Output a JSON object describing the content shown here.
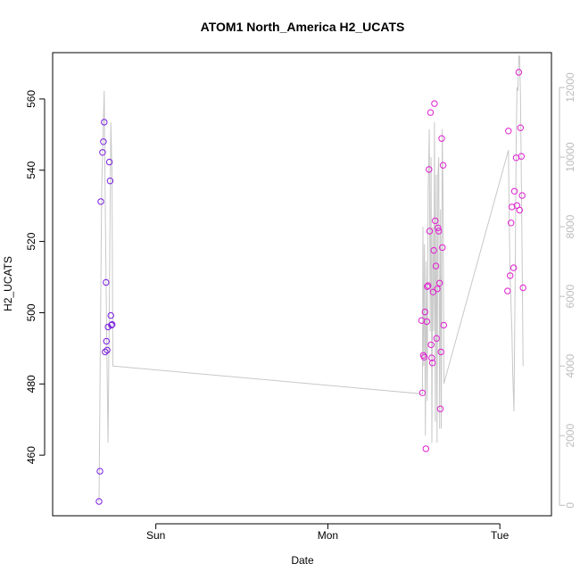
{
  "chart_data": {
    "type": "scatter",
    "title": "ATOM1 North_America H2_UCATS",
    "xlabel": "Date",
    "ylabel": "H2_UCATS",
    "x_ticks": [
      "Sun",
      "Mon",
      "Tue"
    ],
    "x_range_days": [
      -0.6,
      2.3
    ],
    "ylim": [
      443,
      573
    ],
    "y_ticks": [
      460,
      480,
      500,
      520,
      540,
      560
    ],
    "y2lim": [
      -300,
      13000
    ],
    "y2_ticks": [
      0,
      2000,
      4000,
      6000,
      8000,
      10000,
      12000
    ],
    "colors": {
      "points_early": "#7b1fe0",
      "points_late": "#e01fd0",
      "line": "#c8c8c8",
      "axis": "#000000",
      "axis_right": "#bdbdbd"
    },
    "series": [
      {
        "values": [
          {
            "x": -0.33,
            "y": 447
          },
          {
            "x": -0.325,
            "y": 455.5
          },
          {
            "x": -0.32,
            "y": 531.2
          },
          {
            "x": -0.31,
            "y": 545
          },
          {
            "x": -0.305,
            "y": 548
          },
          {
            "x": -0.3,
            "y": 553.5
          },
          {
            "x": -0.295,
            "y": 489
          },
          {
            "x": -0.29,
            "y": 508.5
          },
          {
            "x": -0.287,
            "y": 492
          },
          {
            "x": -0.283,
            "y": 489.5
          },
          {
            "x": -0.278,
            "y": 496
          },
          {
            "x": -0.27,
            "y": 542.3
          },
          {
            "x": -0.266,
            "y": 537
          },
          {
            "x": -0.262,
            "y": 499.2
          },
          {
            "x": -0.258,
            "y": 496.5
          },
          {
            "x": -0.254,
            "y": 496.7
          },
          {
            "x": 1.545,
            "y": 497.8
          },
          {
            "x": 1.55,
            "y": 477.5
          },
          {
            "x": 1.555,
            "y": 488
          },
          {
            "x": 1.56,
            "y": 487.5
          },
          {
            "x": 1.565,
            "y": 500.2
          },
          {
            "x": 1.57,
            "y": 461.8
          },
          {
            "x": 1.575,
            "y": 497.5
          },
          {
            "x": 1.578,
            "y": 507.3
          },
          {
            "x": 1.583,
            "y": 507.6
          },
          {
            "x": 1.588,
            "y": 540.2
          },
          {
            "x": 1.592,
            "y": 522.9
          },
          {
            "x": 1.597,
            "y": 556.2
          },
          {
            "x": 1.6,
            "y": 491
          },
          {
            "x": 1.604,
            "y": 487.3
          },
          {
            "x": 1.608,
            "y": 485.9
          },
          {
            "x": 1.612,
            "y": 505.8
          },
          {
            "x": 1.616,
            "y": 517.5
          },
          {
            "x": 1.62,
            "y": 558.7
          },
          {
            "x": 1.624,
            "y": 525.8
          },
          {
            "x": 1.628,
            "y": 513.1
          },
          {
            "x": 1.632,
            "y": 492.8
          },
          {
            "x": 1.636,
            "y": 506.7
          },
          {
            "x": 1.64,
            "y": 523.8
          },
          {
            "x": 1.645,
            "y": 522.9
          },
          {
            "x": 1.65,
            "y": 508.3
          },
          {
            "x": 1.654,
            "y": 473
          },
          {
            "x": 1.658,
            "y": 489
          },
          {
            "x": 1.662,
            "y": 548.9
          },
          {
            "x": 1.666,
            "y": 518.3
          },
          {
            "x": 1.67,
            "y": 541.4
          },
          {
            "x": 1.674,
            "y": 496.5
          },
          {
            "x": 2.045,
            "y": 506.1
          },
          {
            "x": 2.05,
            "y": 551
          },
          {
            "x": 2.06,
            "y": 510.4
          },
          {
            "x": 2.065,
            "y": 525.2
          },
          {
            "x": 2.07,
            "y": 529.7
          },
          {
            "x": 2.08,
            "y": 512.6
          },
          {
            "x": 2.085,
            "y": 534.1
          },
          {
            "x": 2.095,
            "y": 543.5
          },
          {
            "x": 2.1,
            "y": 530.1
          },
          {
            "x": 2.11,
            "y": 567.5
          },
          {
            "x": 2.115,
            "y": 528.8
          },
          {
            "x": 2.12,
            "y": 551.9
          },
          {
            "x": 2.125,
            "y": 543.9
          },
          {
            "x": 2.13,
            "y": 532.9
          },
          {
            "x": 2.135,
            "y": 507
          }
        ]
      }
    ],
    "line_series": {
      "axis": "right",
      "values": [
        {
          "x": -0.33,
          "y": 100
        },
        {
          "x": -0.315,
          "y": 9000
        },
        {
          "x": -0.3,
          "y": 11900
        },
        {
          "x": -0.295,
          "y": 9000
        },
        {
          "x": -0.285,
          "y": 4500
        },
        {
          "x": -0.278,
          "y": 1800
        },
        {
          "x": -0.27,
          "y": 6000
        },
        {
          "x": -0.262,
          "y": 11000
        },
        {
          "x": -0.255,
          "y": 9500
        },
        {
          "x": -0.25,
          "y": 4000
        },
        {
          "x": 1.55,
          "y": 3200
        },
        {
          "x": 1.553,
          "y": 8000
        },
        {
          "x": 1.557,
          "y": 4000
        },
        {
          "x": 1.562,
          "y": 7500
        },
        {
          "x": 1.567,
          "y": 2000
        },
        {
          "x": 1.572,
          "y": 7000
        },
        {
          "x": 1.578,
          "y": 3000
        },
        {
          "x": 1.583,
          "y": 9000
        },
        {
          "x": 1.59,
          "y": 10800
        },
        {
          "x": 1.595,
          "y": 5000
        },
        {
          "x": 1.6,
          "y": 10000
        },
        {
          "x": 1.605,
          "y": 1800
        },
        {
          "x": 1.61,
          "y": 8000
        },
        {
          "x": 1.615,
          "y": 5000
        },
        {
          "x": 1.62,
          "y": 11000
        },
        {
          "x": 1.625,
          "y": 2400
        },
        {
          "x": 1.63,
          "y": 9500
        },
        {
          "x": 1.635,
          "y": 1800
        },
        {
          "x": 1.64,
          "y": 9500
        },
        {
          "x": 1.645,
          "y": 10000
        },
        {
          "x": 1.65,
          "y": 2200
        },
        {
          "x": 1.655,
          "y": 8500
        },
        {
          "x": 1.66,
          "y": 2200
        },
        {
          "x": 1.665,
          "y": 10800
        },
        {
          "x": 1.67,
          "y": 8600
        },
        {
          "x": 1.675,
          "y": 3500
        },
        {
          "x": 2.05,
          "y": 10200
        },
        {
          "x": 2.055,
          "y": 8000
        },
        {
          "x": 2.06,
          "y": 6500
        },
        {
          "x": 2.07,
          "y": 5000
        },
        {
          "x": 2.075,
          "y": 3800
        },
        {
          "x": 2.082,
          "y": 2700
        },
        {
          "x": 2.09,
          "y": 7000
        },
        {
          "x": 2.095,
          "y": 10500
        },
        {
          "x": 2.1,
          "y": 12000
        },
        {
          "x": 2.105,
          "y": 11900
        },
        {
          "x": 2.11,
          "y": 12900
        },
        {
          "x": 2.115,
          "y": 12900
        },
        {
          "x": 2.12,
          "y": 11800
        },
        {
          "x": 2.13,
          "y": 7000
        },
        {
          "x": 2.135,
          "y": 4000
        }
      ]
    }
  }
}
